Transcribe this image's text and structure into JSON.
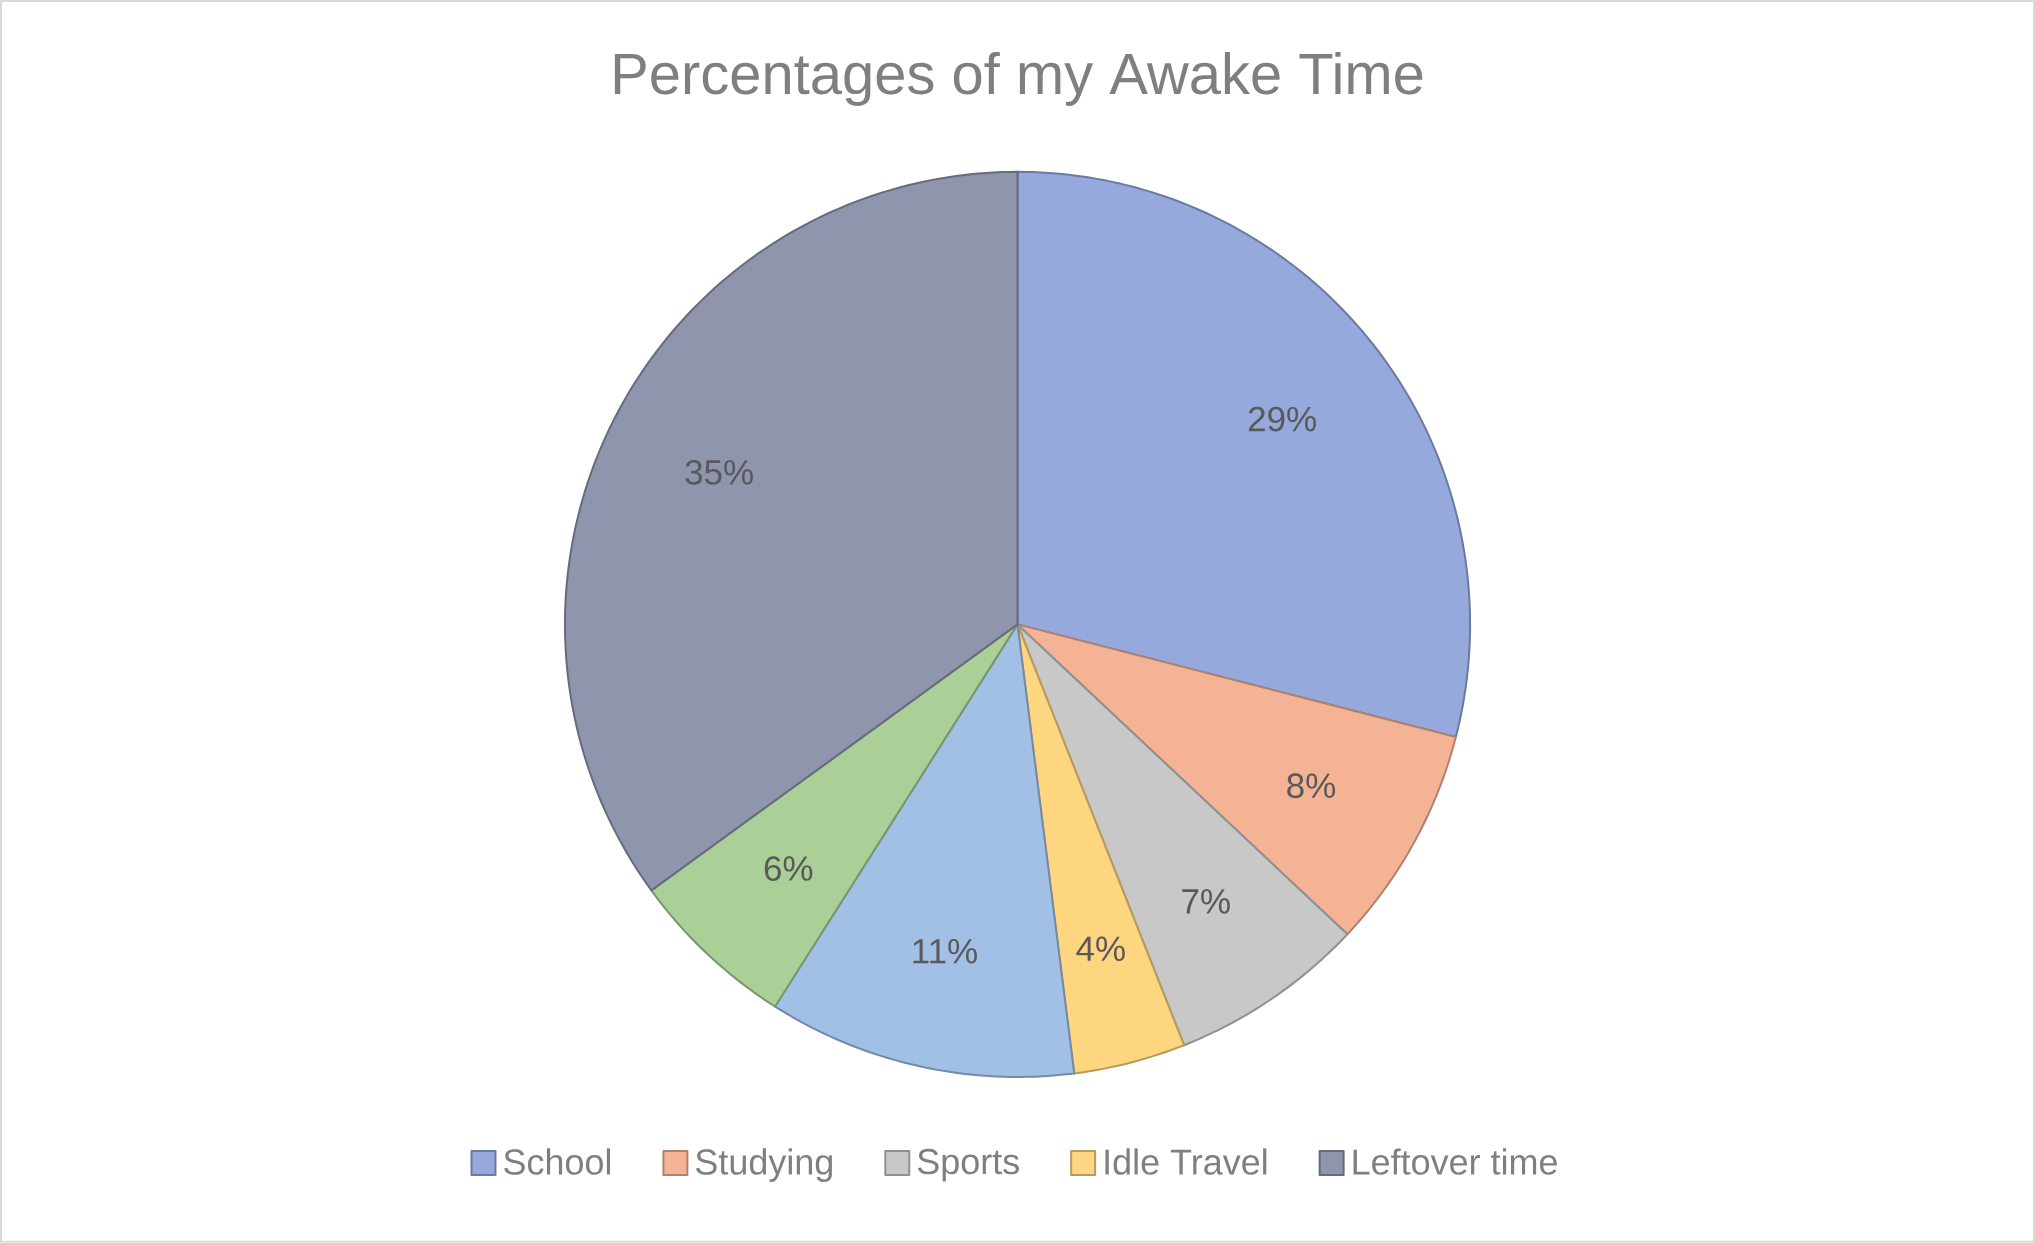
{
  "chart_data": {
    "type": "pie",
    "title": "Percentages of my Awake Time",
    "categories": [
      "School",
      "Studying",
      "Sports",
      "Idle Travel",
      null,
      null,
      "Leftover time"
    ],
    "values": [
      29,
      8,
      7,
      4,
      11,
      6,
      35
    ],
    "colors": [
      "#96a9dd",
      "#f5b396",
      "#c8c8c8",
      "#ffd680",
      "#a2c0e6",
      "#aad098",
      "#8e95ad"
    ],
    "value_labels": [
      "29%",
      "8%",
      "7%",
      "4%",
      "11%",
      "6%",
      "35%"
    ],
    "legend": "bottom"
  }
}
